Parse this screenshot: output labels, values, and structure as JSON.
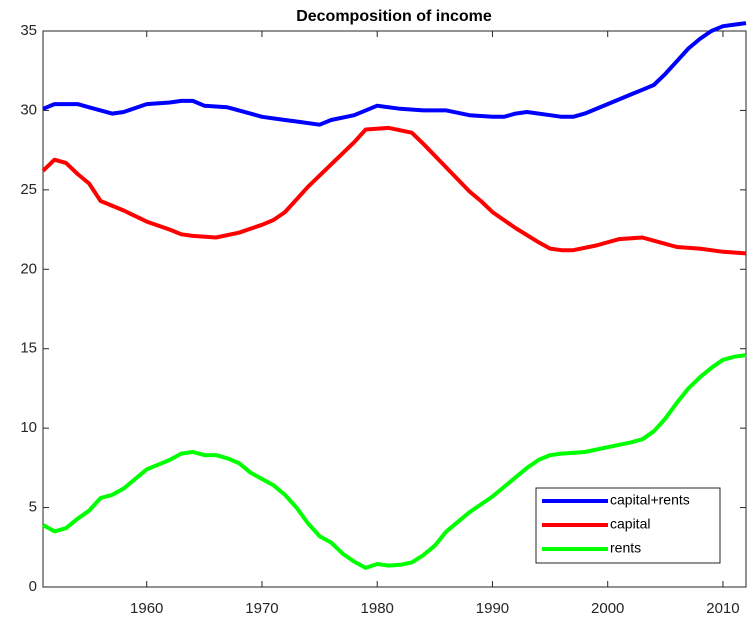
{
  "chart_data": {
    "type": "line",
    "title": "Decomposition of income",
    "xlim": [
      1951,
      2012
    ],
    "xticks": [
      1960,
      1970,
      1980,
      1990,
      2000,
      2010
    ],
    "ylim": [
      0,
      35
    ],
    "yticks": [
      0,
      5,
      10,
      15,
      20,
      25,
      30,
      35
    ],
    "legend": "lower right",
    "series": [
      {
        "name": "capital+rents",
        "color": "#0000ff",
        "x": [
          1951,
          1952,
          1954,
          1955,
          1957,
          1958,
          1960,
          1962,
          1963,
          1964,
          1965,
          1967,
          1968,
          1969,
          1970,
          1972,
          1973,
          1975,
          1976,
          1978,
          1980,
          1982,
          1984,
          1986,
          1988,
          1990,
          1991,
          1992,
          1993,
          1995,
          1996,
          1997,
          1998,
          2000,
          2002,
          2003,
          2004,
          2005,
          2006,
          2007,
          2008,
          2009,
          2010,
          2011,
          2012
        ],
        "values": [
          30.1,
          30.4,
          30.4,
          30.2,
          29.8,
          29.9,
          30.4,
          30.5,
          30.6,
          30.6,
          30.3,
          30.2,
          30.0,
          29.8,
          29.6,
          29.4,
          29.3,
          29.1,
          29.4,
          29.7,
          30.3,
          30.1,
          30.0,
          30.0,
          29.7,
          29.6,
          29.6,
          29.8,
          29.9,
          29.7,
          29.6,
          29.6,
          29.8,
          30.4,
          31.0,
          31.3,
          31.6,
          32.3,
          33.1,
          33.9,
          34.5,
          35.0,
          35.3,
          35.4,
          35.5
        ]
      },
      {
        "name": "capital",
        "color": "#ff0000",
        "x": [
          1951,
          1952,
          1953,
          1954,
          1955,
          1956,
          1958,
          1960,
          1962,
          1963,
          1964,
          1966,
          1968,
          1970,
          1971,
          1972,
          1974,
          1976,
          1978,
          1979,
          1981,
          1983,
          1984,
          1986,
          1988,
          1989,
          1990,
          1992,
          1994,
          1995,
          1996,
          1997,
          1999,
          2001,
          2003,
          2004,
          2006,
          2008,
          2010,
          2012
        ],
        "values": [
          26.2,
          26.9,
          26.7,
          26.0,
          25.4,
          24.3,
          23.7,
          23.0,
          22.5,
          22.2,
          22.1,
          22.0,
          22.3,
          22.8,
          23.1,
          23.6,
          25.2,
          26.6,
          28.0,
          28.8,
          28.9,
          28.6,
          27.9,
          26.4,
          24.9,
          24.3,
          23.6,
          22.6,
          21.7,
          21.3,
          21.2,
          21.2,
          21.5,
          21.9,
          22.0,
          21.8,
          21.4,
          21.3,
          21.1,
          21.0
        ]
      },
      {
        "name": "rents",
        "color": "#00ff00",
        "x": [
          1951,
          1952,
          1953,
          1954,
          1955,
          1956,
          1957,
          1958,
          1960,
          1961,
          1962,
          1963,
          1964,
          1965,
          1966,
          1967,
          1968,
          1969,
          1970,
          1971,
          1972,
          1973,
          1974,
          1975,
          1976,
          1977,
          1978,
          1979,
          1980,
          1981,
          1982,
          1983,
          1984,
          1985,
          1986,
          1988,
          1990,
          1992,
          1993,
          1994,
          1995,
          1996,
          1998,
          2000,
          2002,
          2003,
          2004,
          2005,
          2006,
          2007,
          2008,
          2009,
          2010,
          2011,
          2012
        ],
        "values": [
          3.9,
          3.5,
          3.7,
          4.3,
          4.8,
          5.6,
          5.8,
          6.2,
          7.4,
          7.7,
          8.0,
          8.4,
          8.5,
          8.3,
          8.3,
          8.1,
          7.8,
          7.2,
          6.8,
          6.4,
          5.8,
          5.0,
          4.0,
          3.2,
          2.8,
          2.1,
          1.6,
          1.2,
          1.45,
          1.35,
          1.4,
          1.55,
          2.0,
          2.6,
          3.5,
          4.7,
          5.7,
          6.9,
          7.5,
          8.0,
          8.3,
          8.4,
          8.5,
          8.8,
          9.1,
          9.3,
          9.8,
          10.6,
          11.6,
          12.5,
          13.2,
          13.8,
          14.3,
          14.5,
          14.6
        ]
      }
    ]
  }
}
